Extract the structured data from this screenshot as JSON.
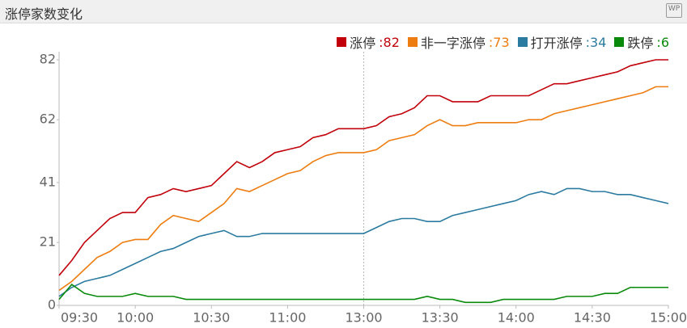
{
  "chart_data": {
    "type": "line",
    "title": "涨停家数变化",
    "categories": [
      "09:30",
      null,
      null,
      null,
      null,
      null,
      "10:00",
      null,
      null,
      null,
      null,
      null,
      "10:30",
      null,
      null,
      null,
      null,
      null,
      "11:00",
      null,
      null,
      null,
      null,
      null,
      "13:00",
      null,
      null,
      null,
      null,
      null,
      "13:30",
      null,
      null,
      null,
      null,
      null,
      "14:00",
      null,
      null,
      null,
      null,
      null,
      "14:30",
      null,
      null,
      null,
      null,
      null,
      "15:00"
    ],
    "series": [
      {
        "name": "涨停",
        "color": "#c1000b",
        "values": [
          10,
          15,
          21,
          25,
          29,
          31,
          31,
          36,
          37,
          39,
          38,
          39,
          40,
          44,
          48,
          46,
          48,
          51,
          52,
          53,
          56,
          57,
          59,
          59,
          59,
          60,
          63,
          64,
          66,
          70,
          70,
          68,
          68,
          68,
          70,
          70,
          70,
          70,
          72,
          74,
          74,
          75,
          76,
          77,
          78,
          80,
          81,
          82,
          82
        ]
      },
      {
        "name": "非一字涨停",
        "color": "#ed7d10",
        "values": [
          5,
          8,
          12,
          16,
          18,
          21,
          22,
          22,
          27,
          30,
          29,
          28,
          31,
          34,
          39,
          38,
          40,
          42,
          44,
          45,
          48,
          50,
          51,
          51,
          51,
          52,
          55,
          56,
          57,
          60,
          62,
          60,
          60,
          61,
          61,
          61,
          61,
          62,
          62,
          64,
          65,
          66,
          67,
          68,
          69,
          70,
          71,
          73,
          73
        ]
      },
      {
        "name": "打开涨停",
        "color": "#2b7ba0",
        "values": [
          3,
          6,
          8,
          9,
          10,
          12,
          14,
          16,
          18,
          19,
          21,
          23,
          24,
          25,
          23,
          23,
          24,
          24,
          24,
          24,
          24,
          24,
          24,
          24,
          24,
          26,
          28,
          29,
          29,
          28,
          28,
          30,
          31,
          32,
          33,
          34,
          35,
          37,
          38,
          37,
          39,
          39,
          38,
          38,
          37,
          37,
          36,
          35,
          34
        ]
      },
      {
        "name": "跌停",
        "color": "#0a8a0a",
        "values": [
          2,
          7,
          4,
          3,
          3,
          3,
          4,
          3,
          3,
          3,
          2,
          2,
          2,
          2,
          2,
          2,
          2,
          2,
          2,
          2,
          2,
          2,
          2,
          2,
          2,
          2,
          2,
          2,
          2,
          3,
          2,
          2,
          1,
          1,
          1,
          2,
          2,
          2,
          2,
          2,
          3,
          3,
          3,
          4,
          4,
          6,
          6,
          6,
          6
        ]
      }
    ],
    "ylim": [
      0,
      82
    ],
    "yticks": [
      0,
      21,
      41,
      62,
      82
    ],
    "grid": false
  }
}
